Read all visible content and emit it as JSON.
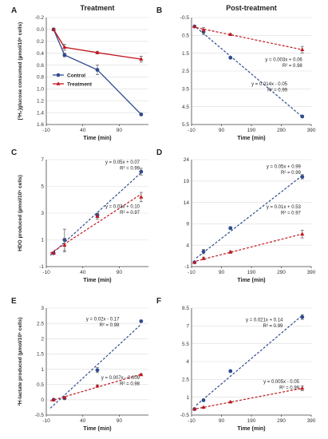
{
  "colors": {
    "control": "#2f4b8f",
    "treatment": "#c0171f"
  },
  "chart_data": [
    {
      "id": "A",
      "type": "line",
      "title": "Treatment",
      "xlabel": "Time (min)",
      "ylabel": "[²H₂]glucose consumed (µmol/10⁶ cells)",
      "xlim": [
        -10,
        130
      ],
      "xticks": [
        "-10",
        "40",
        "90"
      ],
      "ylim": [
        -0.2,
        1.6
      ],
      "yticks": [
        "-0.2",
        "0.0",
        "0.2",
        "0.4",
        "0.6",
        "0.8",
        "1.0",
        "1.2",
        "1.4",
        "1.6"
      ],
      "y_inverted": true,
      "grid": true,
      "legend": {
        "placement": "center-left",
        "entries": [
          "Control",
          "Treatment"
        ]
      },
      "series": [
        {
          "name": "Control",
          "x": [
            0,
            15,
            60,
            120
          ],
          "y": [
            0,
            0.43,
            0.68,
            1.43
          ],
          "err": [
            0.02,
            0.03,
            0.08,
            0.02
          ],
          "marker": "circle",
          "style": "solid"
        },
        {
          "name": "Treatment",
          "x": [
            0,
            15,
            60,
            120
          ],
          "y": [
            0,
            0.3,
            0.39,
            0.5
          ],
          "err": [
            0.02,
            0.05,
            0.02,
            0.05
          ],
          "marker": "triangle",
          "style": "solid"
        }
      ],
      "fits": []
    },
    {
      "id": "B",
      "type": "line",
      "title": "Post-treatment",
      "xlabel": "Time (min)",
      "ylabel": "",
      "xlim": [
        -10,
        390
      ],
      "xticks": [
        "-10",
        "90",
        "190",
        "290",
        "390"
      ],
      "ylim": [
        -0.5,
        5.5
      ],
      "yticks": [
        "-0.5",
        "0.5",
        "1.5",
        "2.5",
        "3.5",
        "4.5",
        "5.5"
      ],
      "y_inverted": true,
      "grid": true,
      "series": [
        {
          "name": "",
          "x": [
            0,
            30,
            120,
            360
          ],
          "y": [
            0,
            0.3,
            1.75,
            5.05
          ],
          "err": [
            0,
            0.15,
            0.05,
            0.05
          ],
          "marker": "circle",
          "style": "dashed"
        },
        {
          "name": "",
          "x": [
            0,
            30,
            120,
            360
          ],
          "y": [
            0,
            0.2,
            0.45,
            1.3
          ],
          "err": [
            0,
            0.15,
            0.05,
            0.18
          ],
          "marker": "triangle",
          "style": "dashed"
        }
      ],
      "fits": [
        {
          "text": [
            "y = 0.003x + 0.06",
            "R² = 0.98"
          ],
          "color": "treatment",
          "anchor": [
            360,
            1.95
          ]
        },
        {
          "text": [
            "y = 0.014x - 0.05",
            "R² = 0.99"
          ],
          "color": "control",
          "anchor": [
            310,
            3.3
          ]
        }
      ]
    },
    {
      "id": "C",
      "type": "scatter",
      "title": "",
      "xlabel": "Time (min)",
      "ylabel": "HDO produced (µmol/10⁶ cells)",
      "xlim": [
        -10,
        130
      ],
      "xticks": [
        "-10",
        "40",
        "90"
      ],
      "ylim": [
        -1,
        7
      ],
      "yticks": [
        "-1",
        "1",
        "3",
        "5",
        "7"
      ],
      "y_inverted": false,
      "grid": true,
      "series": [
        {
          "name": "",
          "x": [
            0,
            15,
            60,
            120
          ],
          "y": [
            0,
            1.0,
            2.85,
            6.1
          ],
          "err": [
            0,
            0.8,
            0.15,
            0.25
          ],
          "marker": "circle",
          "style": "dashed"
        },
        {
          "name": "",
          "x": [
            0,
            15,
            60,
            120
          ],
          "y": [
            0,
            0.6,
            2.75,
            4.2
          ],
          "err": [
            0,
            0.5,
            0.2,
            0.35
          ],
          "marker": "triangle",
          "style": "dashed"
        }
      ],
      "fits": [
        {
          "text": [
            "y = 0.05x + 0.07",
            "R² = 0.99"
          ],
          "color": "control",
          "anchor": [
            118,
            6.7
          ]
        },
        {
          "text": [
            "y = 0.03x + 0.10",
            "R² = 0.97"
          ],
          "color": "treatment",
          "anchor": [
            118,
            3.4
          ]
        }
      ]
    },
    {
      "id": "D",
      "type": "scatter",
      "title": "",
      "xlabel": "Time (min)",
      "ylabel": "",
      "xlim": [
        -10,
        390
      ],
      "xticks": [
        "-10",
        "90",
        "190",
        "290",
        "390"
      ],
      "ylim": [
        -1,
        24
      ],
      "yticks": [
        "-1",
        "4",
        "9",
        "14",
        "19",
        "24"
      ],
      "y_inverted": false,
      "grid": true,
      "series": [
        {
          "name": "",
          "x": [
            0,
            30,
            120,
            360
          ],
          "y": [
            0,
            2.5,
            8,
            20
          ],
          "err": [
            0,
            0.5,
            0.3,
            0.5
          ],
          "marker": "circle",
          "style": "dashed"
        },
        {
          "name": "",
          "x": [
            0,
            30,
            120,
            360
          ],
          "y": [
            0,
            0.9,
            2.4,
            6.6
          ],
          "err": [
            0,
            0.3,
            0.3,
            0.9
          ],
          "marker": "triangle",
          "style": "dashed"
        }
      ],
      "fits": [
        {
          "text": [
            "y = 0.05x + 0.99",
            "R² = 0.99"
          ],
          "color": "control",
          "anchor": [
            355,
            22
          ]
        },
        {
          "text": [
            "y = 0.01x + 0.53",
            "R² = 0.97"
          ],
          "color": "treatment",
          "anchor": [
            355,
            12.6
          ]
        }
      ]
    },
    {
      "id": "E",
      "type": "scatter",
      "title": "",
      "xlabel": "Time (min)",
      "ylabel": "²H-lactate produced (µmol/10⁶ cells)",
      "xlim": [
        -10,
        130
      ],
      "xticks": [
        "-10",
        "40",
        "90"
      ],
      "ylim": [
        -0.5,
        3
      ],
      "yticks": [
        "-0.5",
        "0",
        "0.5",
        "1",
        "1.5",
        "2",
        "2.5",
        "3"
      ],
      "y_inverted": false,
      "grid": true,
      "series": [
        {
          "name": "",
          "x": [
            0,
            15,
            60,
            120
          ],
          "y": [
            0,
            0.05,
            0.97,
            2.57
          ],
          "err": [
            0,
            0.03,
            0.08,
            0.02
          ],
          "marker": "circle",
          "style": "dashed"
        },
        {
          "name": "",
          "x": [
            0,
            15,
            60,
            120
          ],
          "y": [
            0,
            0.07,
            0.45,
            0.82
          ],
          "err": [
            0,
            0.02,
            0.03,
            0.03
          ],
          "marker": "triangle",
          "style": "dashed"
        }
      ],
      "fits": [
        {
          "text": [
            "y = 0.02x - 0.17",
            "R² = 0.98"
          ],
          "color": "control",
          "anchor": [
            90,
            2.6
          ]
        },
        {
          "text": [
            "y = 0.007x - 0.009",
            "R² = 0.98"
          ],
          "color": "treatment",
          "anchor": [
            118,
            0.67
          ]
        }
      ]
    },
    {
      "id": "F",
      "type": "scatter",
      "title": "",
      "xlabel": "Time (min)",
      "ylabel": "",
      "xlim": [
        -10,
        390
      ],
      "xticks": [
        "-10",
        "90",
        "190",
        "290",
        "390"
      ],
      "ylim": [
        -0.5,
        8.5
      ],
      "yticks": [
        "-0.5",
        "1",
        "2.5",
        "4",
        "5.5",
        "7",
        "8.5"
      ],
      "y_inverted": false,
      "grid": true,
      "series": [
        {
          "name": "",
          "x": [
            0,
            30,
            120,
            360
          ],
          "y": [
            0,
            0.75,
            3.2,
            7.75
          ],
          "err": [
            0,
            0.05,
            0.1,
            0.2
          ],
          "marker": "circle",
          "style": "dashed"
        },
        {
          "name": "",
          "x": [
            0,
            30,
            120,
            360
          ],
          "y": [
            0,
            0.15,
            0.6,
            1.75
          ],
          "err": [
            0,
            0.03,
            0.05,
            0.2
          ],
          "marker": "triangle",
          "style": "dashed"
        }
      ],
      "fits": [
        {
          "text": [
            "y = 0.021x + 0.14",
            "R² = 0.99"
          ],
          "color": "control",
          "anchor": [
            295,
            7.4
          ]
        },
        {
          "text": [
            "y = 0.005x - 0.05",
            "R² = 0.99"
          ],
          "color": "treatment",
          "anchor": [
            350,
            2.2
          ]
        }
      ]
    }
  ]
}
